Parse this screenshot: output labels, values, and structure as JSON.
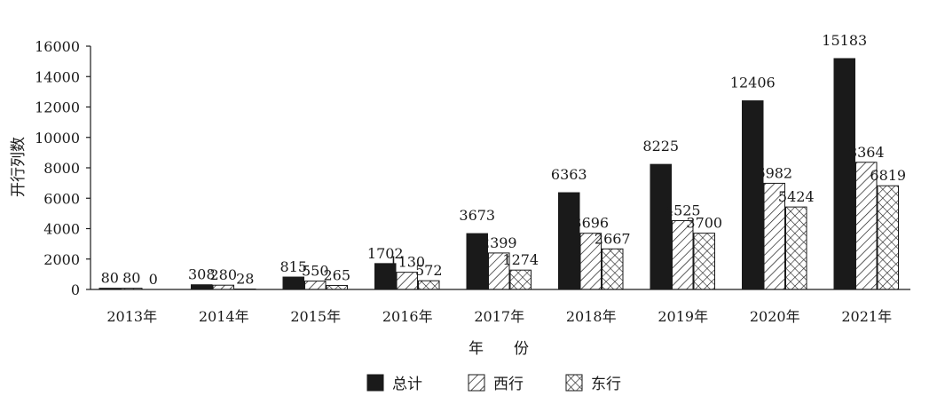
{
  "chart_data": {
    "type": "bar",
    "title": "",
    "xlabel": "年　　份",
    "ylabel": "开行列数",
    "ylim": [
      0,
      16000
    ],
    "yticks": [
      0,
      2000,
      4000,
      6000,
      8000,
      10000,
      12000,
      14000,
      16000
    ],
    "grid": false,
    "legend_position": "bottom",
    "categories": [
      "2013年",
      "2014年",
      "2015年",
      "2016年",
      "2017年",
      "2018年",
      "2019年",
      "2020年",
      "2021年"
    ],
    "series": [
      {
        "name": "总计",
        "pattern": "solid",
        "values": [
          80,
          308,
          815,
          1702,
          3673,
          6363,
          8225,
          12406,
          15183
        ]
      },
      {
        "name": "西行",
        "pattern": "diagonal-hatch",
        "values": [
          80,
          280,
          550,
          1130,
          2399,
          3696,
          4525,
          6982,
          8364
        ]
      },
      {
        "name": "东行",
        "pattern": "cross-hatch",
        "values": [
          0,
          28,
          265,
          572,
          1274,
          2667,
          3700,
          5424,
          6819
        ]
      }
    ],
    "colors": {
      "ink": "#1a1a1a",
      "background": "#ffffff"
    }
  }
}
